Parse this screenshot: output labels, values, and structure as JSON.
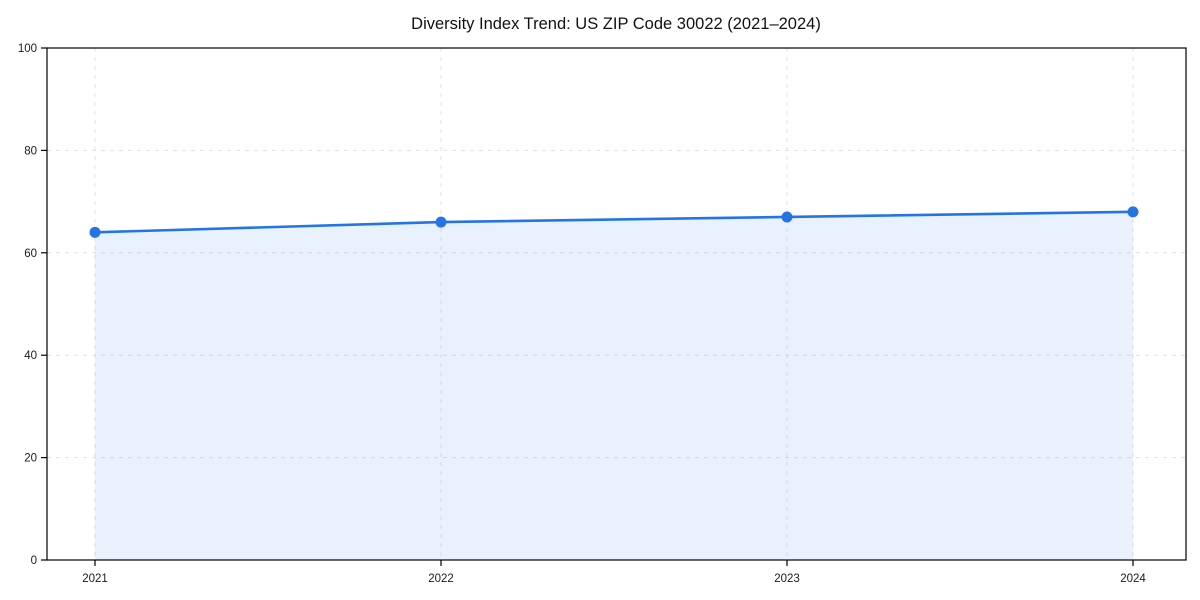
{
  "page": {
    "background": "#ffffff"
  },
  "chart_data": {
    "type": "area",
    "title": "Diversity Index Trend: US ZIP Code 30022 (2021–2024)",
    "xlabel": "",
    "ylabel": "",
    "categories": [
      "2021",
      "2022",
      "2023",
      "2024"
    ],
    "series": [
      {
        "name": "Diversity Index",
        "values": [
          64,
          66,
          67,
          68
        ]
      }
    ],
    "ylim": [
      0,
      100
    ],
    "yticks": [
      0,
      20,
      40,
      60,
      80,
      100
    ],
    "grid": "dashed-both-axes",
    "legend": "none",
    "markers": "circle",
    "colors": {
      "line": "#2474e4",
      "marker": "#2474e4",
      "fill": "rgba(36,116,228,0.10)",
      "grid": "#e2e2e2",
      "spine": "#000000",
      "tick": "#000000",
      "tick_label": "#1a1a1a",
      "title": "#111111",
      "background": "#ffffff"
    }
  }
}
